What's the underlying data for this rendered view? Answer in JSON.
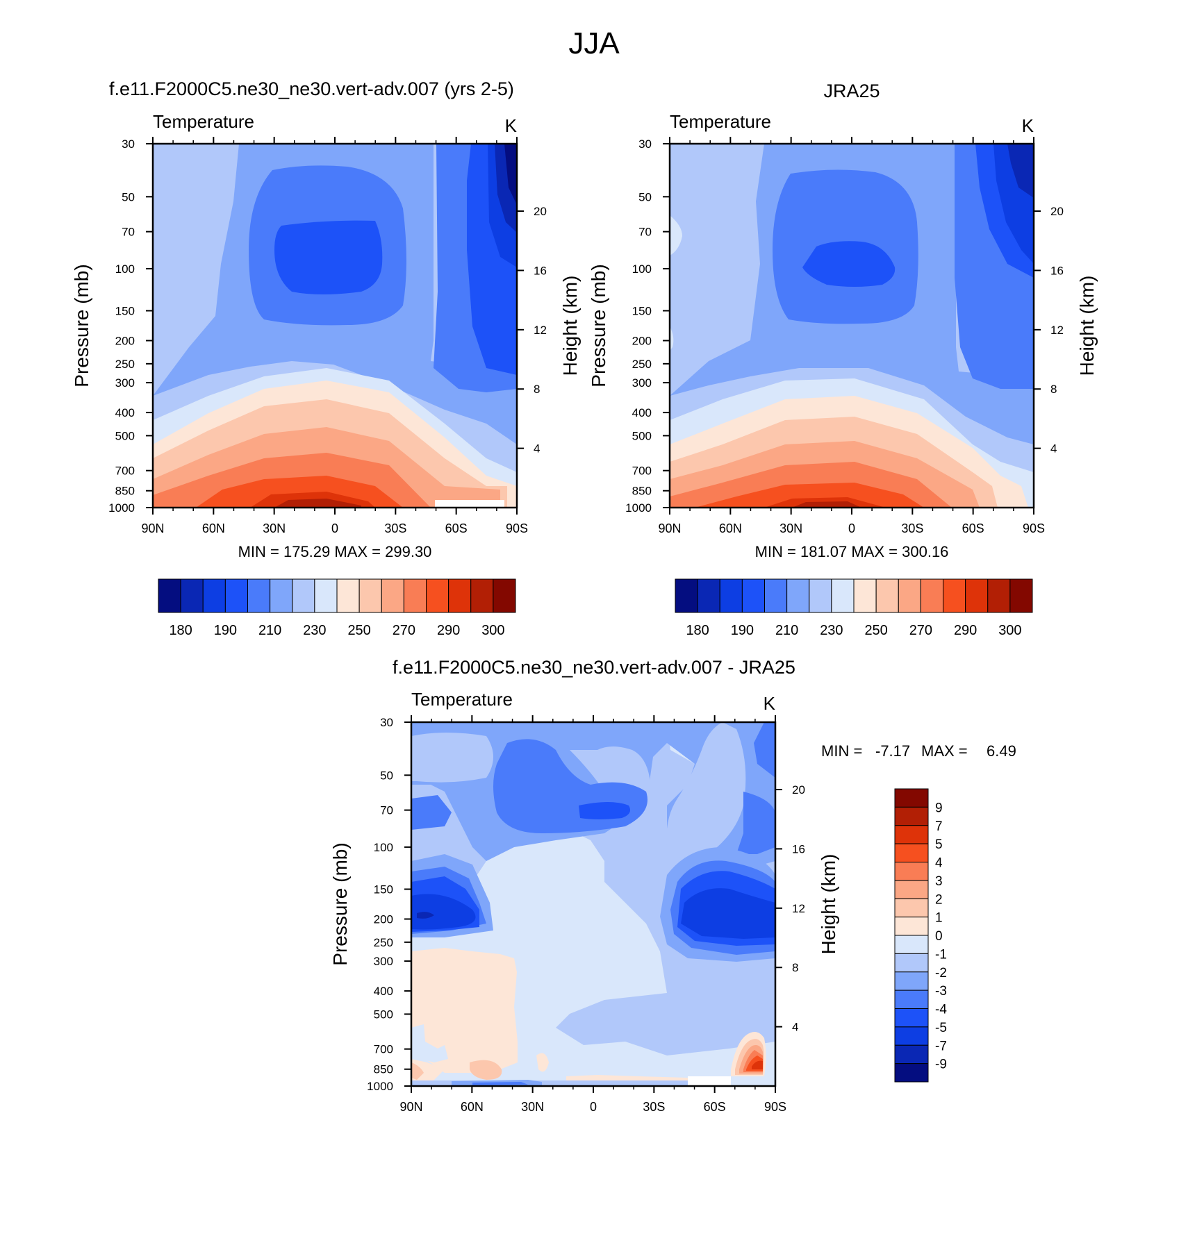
{
  "figure": {
    "title": "JJA",
    "palette_full": [
      "#040d80",
      "#0a27b4",
      "#0d3ee3",
      "#1d52f8",
      "#4a7bfa",
      "#7fa6fa",
      "#b1c8fa",
      "#d9e7fb",
      "#fde6d7",
      "#fcc7ad",
      "#fba785",
      "#f97d55",
      "#f6501f",
      "#de3309",
      "#b21f05",
      "#830800"
    ],
    "palette_diff": [
      "#040d80",
      "#0a27b4",
      "#0d3ee3",
      "#1d52f8",
      "#4a7bfa",
      "#7fa6fa",
      "#b1c8fa",
      "#d9e7fb",
      "#fde6d7",
      "#fcc7ad",
      "#fba785",
      "#f97d55",
      "#f6501f",
      "#de3309",
      "#b21f05",
      "#830800"
    ]
  },
  "chart_data": [
    {
      "type": "heatmap",
      "title": "f.e11.F2000C5.ne30_ne30.vert-adv.007 (yrs 2-5)",
      "left_label": "Temperature",
      "units": "K",
      "xlabel": "",
      "ylabel": "Pressure (mb)",
      "y2label": "Height (km)",
      "xticks": [
        "90N",
        "60N",
        "30N",
        "0",
        "30S",
        "60S",
        "90S"
      ],
      "yticks": [
        "30",
        "50",
        "70",
        "100",
        "150",
        "200",
        "250",
        "300",
        "400",
        "500",
        "700",
        "850",
        "1000"
      ],
      "ylim": [
        1000,
        30
      ],
      "y2ticks": [
        "4",
        "8",
        "12",
        "16",
        "20"
      ],
      "stats": "MIN = 175.29  MAX = 299.30",
      "levels": [
        175,
        180,
        185,
        190,
        200,
        210,
        220,
        230,
        240,
        250,
        260,
        270,
        280,
        290,
        295,
        300
      ],
      "colorbar_labels": [
        "180",
        "190",
        "210",
        "230",
        "250",
        "270",
        "290",
        "300"
      ],
      "min": 175.29,
      "max": 299.3
    },
    {
      "type": "heatmap",
      "title": "JRA25",
      "left_label": "Temperature",
      "units": "K",
      "xlabel": "",
      "ylabel": "Pressure (mb)",
      "y2label": "Height (km)",
      "xticks": [
        "90N",
        "60N",
        "30N",
        "0",
        "30S",
        "60S",
        "90S"
      ],
      "yticks": [
        "30",
        "50",
        "70",
        "100",
        "150",
        "200",
        "250",
        "300",
        "400",
        "500",
        "700",
        "850",
        "1000"
      ],
      "ylim": [
        1000,
        30
      ],
      "y2ticks": [
        "4",
        "8",
        "12",
        "16",
        "20"
      ],
      "stats": "MIN = 181.07  MAX = 300.16",
      "levels": [
        175,
        180,
        185,
        190,
        200,
        210,
        220,
        230,
        240,
        250,
        260,
        270,
        280,
        290,
        295,
        300
      ],
      "colorbar_labels": [
        "180",
        "190",
        "210",
        "230",
        "250",
        "270",
        "290",
        "300"
      ],
      "min": 181.07,
      "max": 300.16
    },
    {
      "type": "heatmap",
      "title": "f.e11.F2000C5.ne30_ne30.vert-adv.007 - JRA25",
      "left_label": "Temperature",
      "units": "K",
      "xlabel": "",
      "ylabel": "Pressure (mb)",
      "y2label": "Height (km)",
      "xticks": [
        "90N",
        "60N",
        "30N",
        "0",
        "30S",
        "60S",
        "90S"
      ],
      "yticks": [
        "30",
        "50",
        "70",
        "100",
        "150",
        "200",
        "250",
        "300",
        "400",
        "500",
        "700",
        "850",
        "1000"
      ],
      "ylim": [
        1000,
        30
      ],
      "y2ticks": [
        "4",
        "8",
        "12",
        "16",
        "20"
      ],
      "stats_min_label": "MIN =",
      "stats_min": "-7.17",
      "stats_max_label": "MAX =",
      "stats_max": "6.49",
      "levels": [
        -9,
        -7,
        -5,
        -4,
        -3,
        -2,
        -1,
        0,
        1,
        2,
        3,
        4,
        5,
        7,
        9
      ],
      "colorbar_labels": [
        "9",
        "7",
        "5",
        "4",
        "3",
        "2",
        "1",
        "0",
        "-1",
        "-2",
        "-3",
        "-4",
        "-5",
        "-7",
        "-9"
      ],
      "min": -7.17,
      "max": 6.49
    }
  ]
}
